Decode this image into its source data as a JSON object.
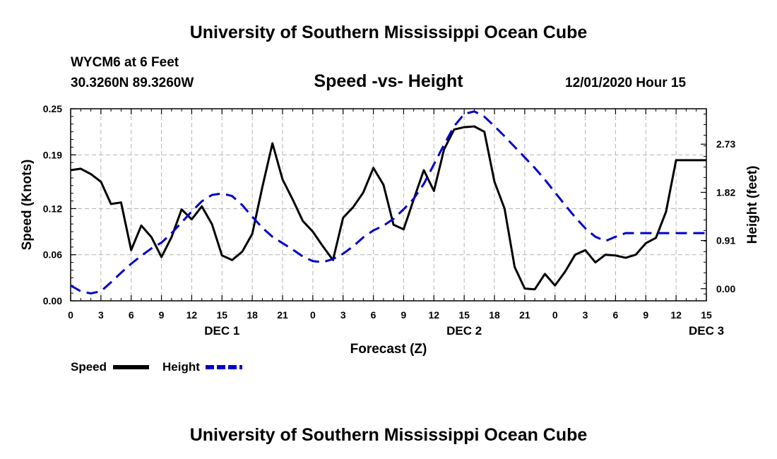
{
  "header": {
    "title": "University of Southern Mississippi Ocean Cube",
    "station": "WYCM6 at 6 Feet",
    "location": "30.3260N 89.3260W",
    "subtitle": "Speed -vs- Height",
    "datetime": "12/01/2020 Hour 15"
  },
  "footer": {
    "title": "University of Southern Mississippi Ocean Cube"
  },
  "colors": {
    "speed": "#000000",
    "height": "#0000cc",
    "grid": "#b4b4b4"
  },
  "chart_data": {
    "type": "line",
    "title": "Speed -vs- Height",
    "xlabel": "Forecast (Z)",
    "ylabel": "Speed (Knots)",
    "y2label": "Height (feet)",
    "xlim": [
      0,
      63
    ],
    "ylim": [
      0,
      0.25
    ],
    "y2lim": [
      -0.23,
      3.4
    ],
    "x_ticks": [
      0,
      3,
      6,
      9,
      12,
      15,
      18,
      21,
      24,
      27,
      30,
      33,
      36,
      39,
      42,
      45,
      48,
      51,
      54,
      57,
      60,
      63
    ],
    "x_tick_labels": [
      "0",
      "3",
      "6",
      "9",
      "12",
      "15",
      "18",
      "21",
      "0",
      "3",
      "6",
      "9",
      "12",
      "15",
      "18",
      "21",
      "0",
      "3",
      "6",
      "9",
      "12",
      "15"
    ],
    "date_labels": [
      {
        "x": 15,
        "label": "DEC 1"
      },
      {
        "x": 39,
        "label": "DEC 2"
      },
      {
        "x": 63,
        "label": "DEC 3"
      }
    ],
    "y_ticks": [
      0,
      0.06,
      0.12,
      0.19,
      0.25
    ],
    "y_tick_labels": [
      "0.00",
      "0.06",
      "0.12",
      "0.19",
      "0.25"
    ],
    "y2_ticks": [
      0,
      0.91,
      1.82,
      2.73
    ],
    "y2_tick_labels": [
      "0.00",
      "0.91",
      "1.82",
      "2.73"
    ],
    "grid": true,
    "legend": [
      "Speed",
      "Height"
    ],
    "series": [
      {
        "name": "Speed",
        "axis": "left",
        "style": "solid",
        "x": [
          0,
          1,
          2,
          3,
          4,
          5,
          6,
          7,
          8,
          9,
          10,
          11,
          12,
          13,
          14,
          15,
          16,
          17,
          18,
          19,
          20,
          21,
          22,
          23,
          24,
          25,
          26,
          27,
          28,
          29,
          30,
          31,
          32,
          33,
          34,
          35,
          36,
          37,
          38,
          39,
          40,
          41,
          42,
          43,
          44,
          45,
          46,
          47,
          48,
          49,
          50,
          51,
          52,
          53,
          54,
          55,
          56,
          57,
          58,
          59,
          60,
          61,
          62,
          63
        ],
        "values": [
          0.17,
          0.172,
          0.165,
          0.155,
          0.126,
          0.128,
          0.066,
          0.098,
          0.083,
          0.057,
          0.083,
          0.119,
          0.106,
          0.123,
          0.1,
          0.059,
          0.053,
          0.064,
          0.087,
          0.148,
          0.205,
          0.158,
          0.132,
          0.104,
          0.09,
          0.071,
          0.053,
          0.108,
          0.122,
          0.141,
          0.173,
          0.151,
          0.099,
          0.093,
          0.132,
          0.17,
          0.143,
          0.197,
          0.223,
          0.226,
          0.227,
          0.22,
          0.155,
          0.12,
          0.044,
          0.016,
          0.015,
          0.035,
          0.02,
          0.038,
          0.06,
          0.066,
          0.05,
          0.06,
          0.059,
          0.056,
          0.06,
          0.075,
          0.082,
          0.116,
          0.183,
          0.183,
          0.183,
          0.183
        ]
      },
      {
        "name": "Height",
        "axis": "right",
        "style": "dashed",
        "x": [
          0,
          1,
          2,
          3,
          4,
          5,
          6,
          7,
          8,
          9,
          10,
          11,
          12,
          13,
          14,
          15,
          16,
          17,
          18,
          19,
          20,
          21,
          22,
          23,
          24,
          25,
          26,
          27,
          28,
          29,
          30,
          31,
          32,
          33,
          34,
          35,
          36,
          37,
          38,
          39,
          40,
          41,
          42,
          43,
          44,
          45,
          46,
          47,
          48,
          49,
          50,
          51,
          52,
          53,
          54,
          55,
          56,
          57,
          58,
          59,
          60,
          61,
          62,
          63
        ],
        "values": [
          0.06,
          -0.05,
          -0.09,
          -0.05,
          0.12,
          0.3,
          0.47,
          0.62,
          0.76,
          0.87,
          1.05,
          1.25,
          1.46,
          1.65,
          1.77,
          1.8,
          1.75,
          1.58,
          1.36,
          1.15,
          0.98,
          0.86,
          0.74,
          0.61,
          0.52,
          0.5,
          0.56,
          0.66,
          0.8,
          0.97,
          1.1,
          1.19,
          1.32,
          1.5,
          1.7,
          1.98,
          2.35,
          2.72,
          3.07,
          3.3,
          3.35,
          3.25,
          3.07,
          2.88,
          2.68,
          2.48,
          2.28,
          2.06,
          1.82,
          1.58,
          1.35,
          1.14,
          0.98,
          0.9,
          0.98,
          1.05,
          1.05,
          1.05,
          1.05,
          1.05,
          1.05,
          1.05,
          1.05,
          1.05
        ]
      }
    ]
  }
}
